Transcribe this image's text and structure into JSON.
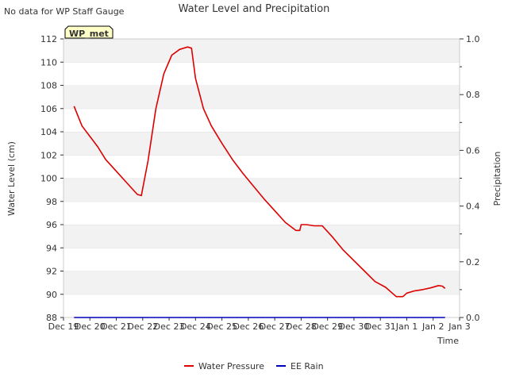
{
  "chart_data": {
    "type": "line",
    "title": "Water Level and Precipitation",
    "note": "No data for WP Staff Gauge",
    "station_label": "WP_met",
    "xlabel": "Time",
    "ylabel": "Water Level (cm)",
    "y2label": "Precipitation",
    "ylim": [
      88,
      112
    ],
    "y2lim": [
      0,
      1.0
    ],
    "yticks": [
      88,
      90,
      92,
      94,
      96,
      98,
      100,
      102,
      104,
      106,
      108,
      110,
      112
    ],
    "y2ticks": [
      "0.0",
      "0.2",
      "0.4",
      "0.6",
      "0.8",
      "1.0"
    ],
    "xlim": [
      0,
      15
    ],
    "xticks": [
      "Dec 19",
      "Dec 20",
      "Dec 21",
      "Dec 22",
      "Dec 23",
      "Dec 24",
      "Dec 25",
      "Dec 26",
      "Dec 27",
      "Dec 28",
      "Dec 29",
      "Dec 30",
      "Dec 31",
      "Jan 1",
      "Jan 2",
      "Jan 3"
    ],
    "grid": "horizontal bands",
    "legend_position": "bottom-center",
    "series": [
      {
        "name": "Water Pressure",
        "color": "#dd0000",
        "axis": "left",
        "x": [
          0.4,
          0.7,
          1.0,
          1.3,
          1.6,
          2.0,
          2.4,
          2.8,
          2.95,
          3.2,
          3.5,
          3.8,
          4.1,
          4.4,
          4.7,
          4.85,
          5.0,
          5.3,
          5.6,
          6.0,
          6.4,
          6.8,
          7.2,
          7.6,
          8.0,
          8.4,
          8.8,
          8.95,
          9.0,
          9.2,
          9.5,
          9.8,
          10.2,
          10.6,
          11.0,
          11.4,
          11.8,
          12.2,
          12.6,
          12.85,
          13.0,
          13.3,
          13.6,
          13.9,
          14.2,
          14.35,
          14.45
        ],
        "values": [
          106.2,
          104.5,
          103.6,
          102.7,
          101.6,
          100.6,
          99.6,
          98.6,
          98.5,
          101.5,
          106.0,
          109.0,
          110.6,
          111.1,
          111.3,
          111.2,
          108.6,
          106.0,
          104.5,
          103.0,
          101.6,
          100.4,
          99.3,
          98.2,
          97.2,
          96.2,
          95.5,
          95.5,
          96.0,
          96.0,
          95.9,
          95.9,
          94.9,
          93.8,
          92.9,
          92.0,
          91.1,
          90.6,
          89.8,
          89.8,
          90.1,
          90.3,
          90.4,
          90.55,
          90.75,
          90.7,
          90.5
        ]
      },
      {
        "name": "EE Rain",
        "color": "#0000bb",
        "axis": "right",
        "x": [
          0.4,
          14.45
        ],
        "values": [
          0.0,
          0.0
        ]
      }
    ]
  }
}
